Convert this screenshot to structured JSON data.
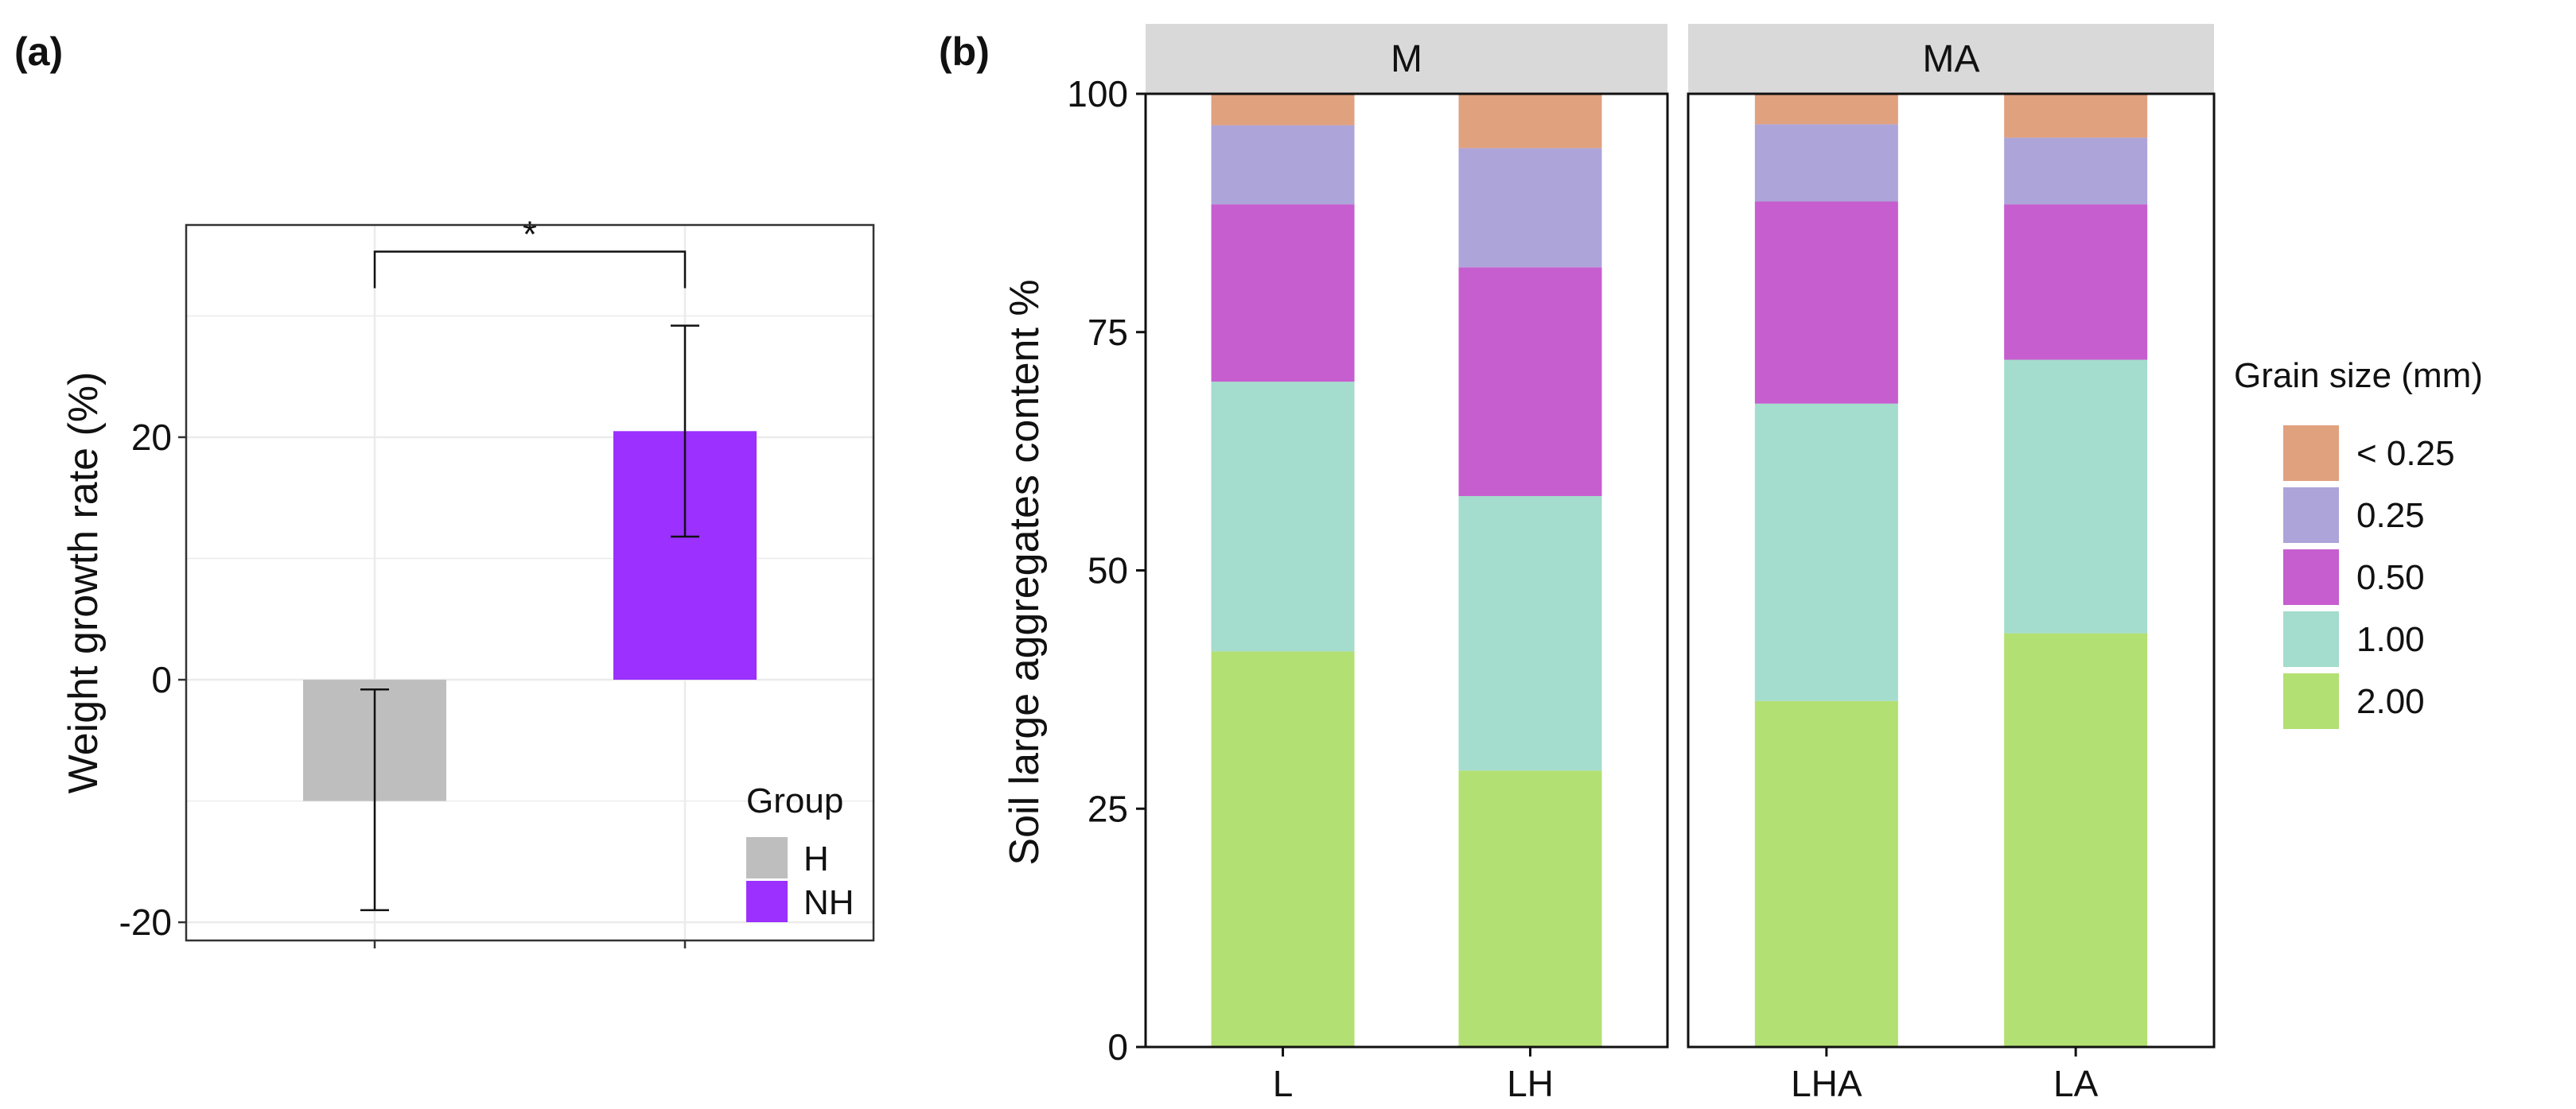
{
  "chart_data": [
    {
      "panel": "(a)",
      "type": "bar",
      "ylabel": "Weight growth rate (%)",
      "xlabel": "",
      "ylim": [
        -21.5,
        37.5
      ],
      "yticks": [
        -20,
        0,
        20
      ],
      "grid": true,
      "series": [
        {
          "category": "H",
          "value": -10,
          "error_low": -19,
          "error_high": -0.8,
          "color": "#bebebe"
        },
        {
          "category": "NH",
          "value": 20.5,
          "error_low": 11.8,
          "error_high": 29.2,
          "color": "#9b30ff"
        }
      ],
      "annotation": {
        "text": "*",
        "between": [
          "H",
          "NH"
        ],
        "at_value": 35.3
      },
      "legend": {
        "title": "Group",
        "position": "bottom-right",
        "entries": [
          "H",
          "NH"
        ]
      }
    },
    {
      "panel": "(b)",
      "type": "stacked-bar",
      "ylabel": "Soil large aggregates content %",
      "ylim": [
        0,
        100
      ],
      "yticks": [
        0,
        25,
        50,
        75,
        100
      ],
      "facets": [
        {
          "label": "M",
          "categories": [
            "L",
            "LH"
          ]
        },
        {
          "label": "MA",
          "categories": [
            "LHA",
            "LA"
          ]
        }
      ],
      "stack_order": [
        "2.00",
        "1.00",
        "0.50",
        "0.25",
        "< 0.25"
      ],
      "colors": {
        "< 0.25": "#e0a17f",
        "0.25": "#ada4d9",
        "0.50": "#c65ecf",
        "1.00": "#a4dccd",
        "2.00": "#b2e072"
      },
      "data": {
        "L": {
          "2.00": 41.5,
          "1.00": 28.3,
          "0.50": 18.6,
          "0.25": 8.3,
          "< 0.25": 3.3
        },
        "LH": {
          "2.00": 29.0,
          "1.00": 28.8,
          "0.50": 24.0,
          "0.25": 12.5,
          "< 0.25": 5.7
        },
        "LHA": {
          "2.00": 36.3,
          "1.00": 31.2,
          "0.50": 21.2,
          "0.25": 8.1,
          "< 0.25": 3.2
        },
        "LA": {
          "2.00": 43.4,
          "1.00": 28.7,
          "0.50": 16.3,
          "0.25": 7.0,
          "< 0.25": 4.6
        }
      },
      "legend": {
        "title": "Grain size (mm)",
        "position": "right",
        "entries": [
          "< 0.25",
          "0.25",
          "0.50",
          "1.00",
          "2.00"
        ]
      }
    }
  ]
}
